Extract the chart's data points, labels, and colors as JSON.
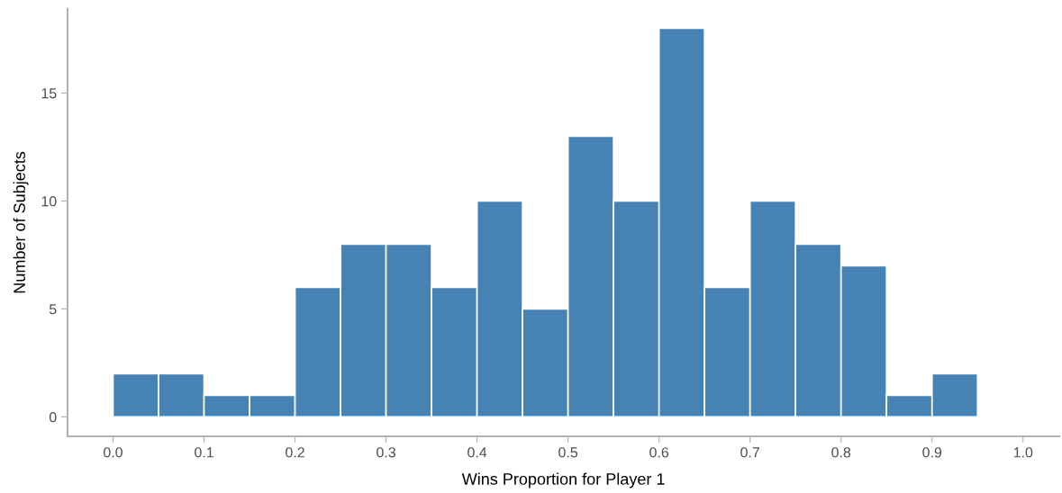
{
  "chart_data": {
    "type": "histogram",
    "xlabel": "Wins Proportion for Player 1",
    "ylabel": "Number of Subjects",
    "bins": [
      0.0,
      0.05,
      0.1,
      0.15,
      0.2,
      0.25,
      0.3,
      0.35,
      0.4,
      0.45,
      0.5,
      0.55,
      0.6,
      0.65,
      0.7,
      0.75,
      0.8,
      0.85,
      0.9,
      0.95
    ],
    "values": [
      2,
      2,
      1,
      1,
      6,
      8,
      8,
      6,
      10,
      5,
      13,
      10,
      18,
      6,
      10,
      8,
      7,
      1,
      2
    ],
    "color": "#4682b4",
    "xlim": [
      -0.05,
      1.04
    ],
    "ylim": [
      -0.9,
      18.9
    ],
    "xticks": [
      {
        "value": 0,
        "label": "0.0"
      },
      0.1,
      0.2,
      0.3,
      0.4,
      0.5,
      0.6,
      0.7,
      0.8,
      0.9,
      {
        "value": 1,
        "label": "1.0"
      }
    ],
    "yticks": [
      0,
      5,
      10,
      15
    ],
    "grid": false,
    "legend": false
  }
}
